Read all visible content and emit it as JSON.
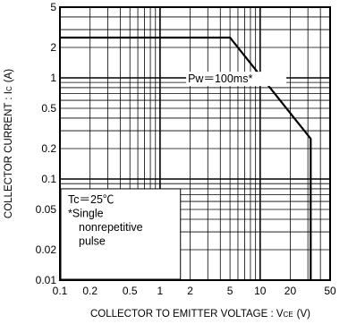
{
  "chart_data": {
    "type": "line",
    "xscale": "log",
    "yscale": "log",
    "xlim": [
      0.1,
      50
    ],
    "ylim": [
      0.01,
      5
    ],
    "grid": true,
    "xlabel": "COLLECTOR TO EMITTER VOLTAGE : V",
    "xlabel_sub": "CE",
    "xlabel_unit": "(V)",
    "ylabel": "COLLECTOR CURRENT : I",
    "ylabel_sub": "C",
    "ylabel_unit": "(A)",
    "x_ticks": [
      {
        "value": 0.1,
        "label": "0.1"
      },
      {
        "value": 0.2,
        "label": "0.2"
      },
      {
        "value": 0.5,
        "label": "0.5"
      },
      {
        "value": 1,
        "label": "1"
      },
      {
        "value": 2,
        "label": "2"
      },
      {
        "value": 5,
        "label": "5"
      },
      {
        "value": 10,
        "label": "10"
      },
      {
        "value": 20,
        "label": "20"
      },
      {
        "value": 50,
        "label": "50"
      }
    ],
    "y_ticks": [
      {
        "value": 0.01,
        "label": "0.01"
      },
      {
        "value": 0.02,
        "label": "0.02"
      },
      {
        "value": 0.05,
        "label": "0.05"
      },
      {
        "value": 0.1,
        "label": "0.1"
      },
      {
        "value": 0.2,
        "label": "0.2"
      },
      {
        "value": 0.5,
        "label": "0.5"
      },
      {
        "value": 1,
        "label": "1"
      },
      {
        "value": 2,
        "label": "2"
      },
      {
        "value": 5,
        "label": "5"
      }
    ],
    "series": [
      {
        "name": "Pw=100ms*",
        "x": [
          0.1,
          5,
          32,
          32
        ],
        "y": [
          2.5,
          2.5,
          0.25,
          0.01
        ]
      }
    ],
    "annotations": {
      "series_label": "Pw＝100ms*",
      "condition_box": [
        "Tc＝25℃",
        "*Single",
        "nonrepetitive",
        "pulse"
      ]
    }
  }
}
